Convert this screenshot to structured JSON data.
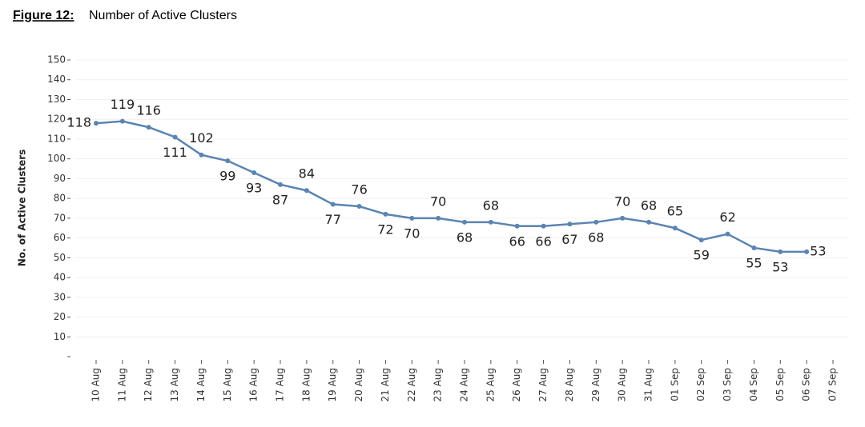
{
  "chart_data": {
    "type": "line",
    "figure_label": "Figure 12:",
    "title": "Number of Active Clusters",
    "ylabel": "No. of Active Clusters",
    "categories": [
      "10 Aug",
      "11 Aug",
      "12 Aug",
      "13 Aug",
      "14 Aug",
      "15 Aug",
      "16 Aug",
      "17 Aug",
      "18 Aug",
      "19 Aug",
      "20 Aug",
      "21 Aug",
      "22 Aug",
      "23 Aug",
      "24 Aug",
      "25 Aug",
      "26 Aug",
      "27 Aug",
      "28 Aug",
      "29 Aug",
      "30 Aug",
      "31 Aug",
      "01 Sep",
      "02 Sep",
      "03 Sep",
      "04 Sep",
      "05 Sep",
      "06 Sep",
      "07 Sep"
    ],
    "series": [
      {
        "color": "#5b84b1",
        "values": [
          118,
          119,
          116,
          111,
          102,
          99,
          93,
          87,
          84,
          77,
          76,
          72,
          70,
          70,
          68,
          68,
          66,
          66,
          67,
          68,
          70,
          68,
          65,
          59,
          62,
          55,
          53,
          53,
          null
        ]
      }
    ],
    "ylim": [
      0,
      150
    ],
    "yticks": [
      10,
      20,
      30,
      40,
      50,
      60,
      70,
      80,
      90,
      100,
      110,
      120,
      130,
      140,
      150
    ],
    "grid": true
  }
}
